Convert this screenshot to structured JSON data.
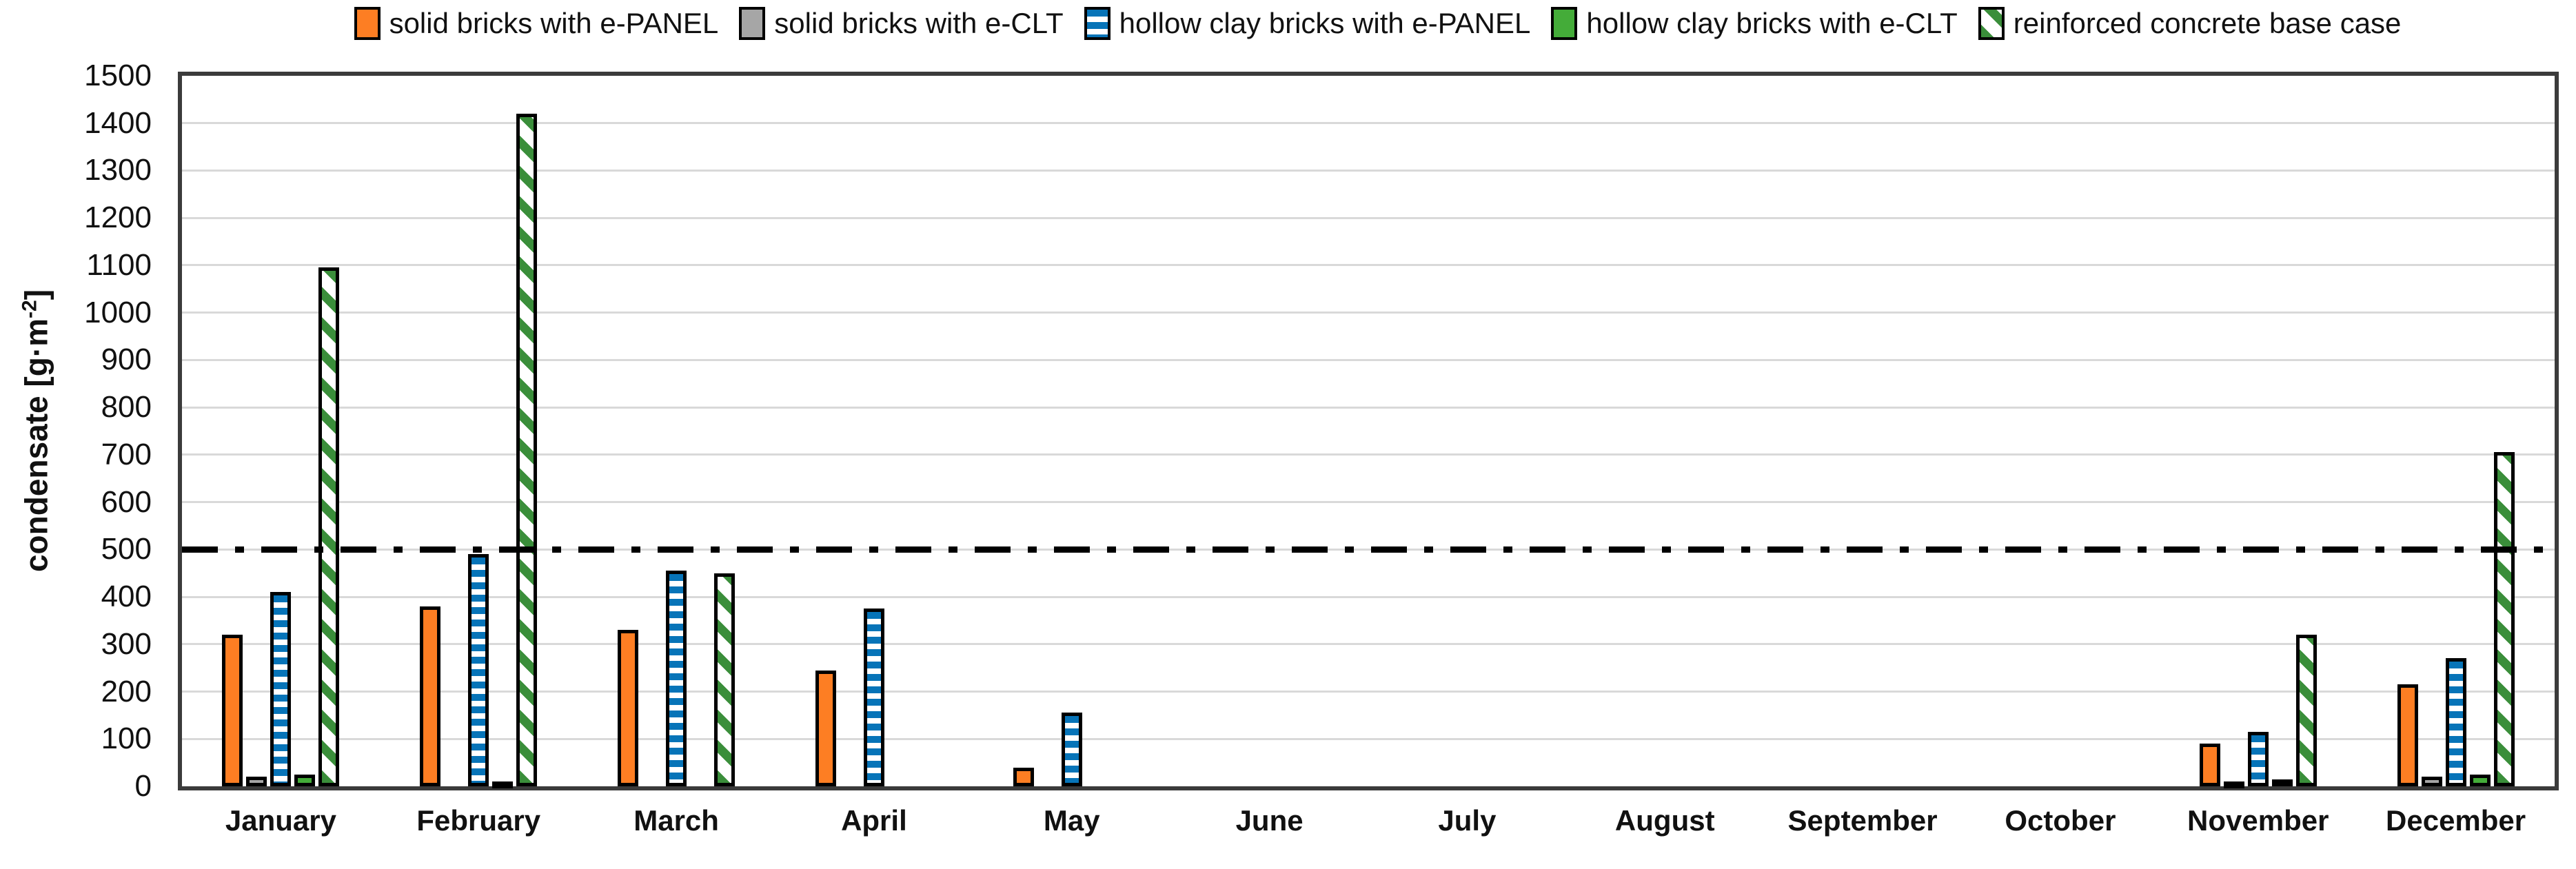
{
  "ylabel_parts": {
    "prefix": "condensate [g·m",
    "sup": "-2",
    "suffix": "]"
  },
  "chart_data": {
    "type": "bar",
    "title": "",
    "xlabel": "",
    "ylabel": "condensate [g·m⁻²]",
    "ylim": [
      0,
      1500
    ],
    "ytick_step": 100,
    "grid": true,
    "legend_position": "top",
    "plot_border_color": "#3B3B3B",
    "gridline_color": "#D9D9D9",
    "reference_line": {
      "value": 500,
      "style": "dash-dot",
      "color": "#000000"
    },
    "categories": [
      "January",
      "February",
      "March",
      "April",
      "May",
      "June",
      "July",
      "August",
      "September",
      "October",
      "November",
      "December"
    ],
    "yticks": [
      0,
      100,
      200,
      300,
      400,
      500,
      600,
      700,
      800,
      900,
      1000,
      1100,
      1200,
      1300,
      1400,
      1500
    ],
    "series": [
      {
        "name": "solid bricks with e-PANEL",
        "key": "solid-bricks-e-panel",
        "pattern": "solid",
        "color": "#FD7E23",
        "values": [
          320,
          380,
          330,
          245,
          40,
          0,
          0,
          0,
          0,
          0,
          90,
          215
        ]
      },
      {
        "name": "solid bricks with e-CLT",
        "key": "solid-bricks-e-clt",
        "pattern": "solid",
        "color": "#A6A6A6",
        "values": [
          20,
          0,
          0,
          0,
          0,
          0,
          0,
          0,
          0,
          0,
          10,
          20
        ]
      },
      {
        "name": "hollow clay bricks with e-PANEL",
        "key": "hollow-clay-e-panel",
        "pattern": "h-stripes",
        "color": "#0774B8",
        "values": [
          410,
          490,
          455,
          375,
          155,
          0,
          0,
          0,
          0,
          0,
          115,
          270
        ]
      },
      {
        "name": "hollow clay bricks with e-CLT",
        "key": "hollow-clay-e-clt",
        "pattern": "solid",
        "color": "#44AC39",
        "values": [
          25,
          10,
          0,
          0,
          0,
          0,
          0,
          0,
          0,
          0,
          15,
          25
        ]
      },
      {
        "name": "reinforced concrete base case",
        "key": "reinforced-concrete",
        "pattern": "diag-hatch",
        "color": "#3A8E3A",
        "values": [
          1095,
          1420,
          450,
          0,
          0,
          0,
          0,
          0,
          0,
          0,
          320,
          705
        ]
      }
    ]
  }
}
